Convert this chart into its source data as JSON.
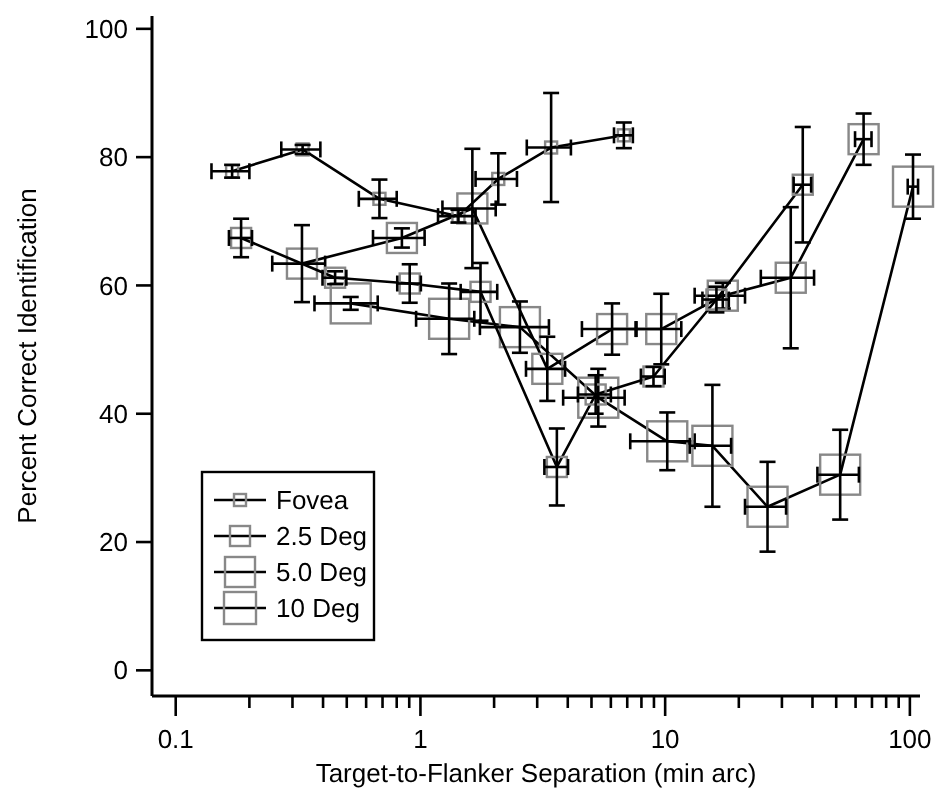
{
  "chart_data": {
    "type": "line",
    "xlabel": "Target-to-Flanker Separation (min arc)",
    "ylabel": "Percent Correct Identification",
    "log": "x",
    "xlim": [
      0.08,
      110
    ],
    "ylim": [
      -4,
      102
    ],
    "xticks": [
      0.1,
      {
        "value": 0.2,
        "label": null
      },
      {
        "value": 0.3,
        "label": null
      },
      {
        "value": 0.4,
        "label": null
      },
      {
        "value": 0.5,
        "label": null
      },
      {
        "value": 0.6,
        "label": null
      },
      {
        "value": 0.7,
        "label": null
      },
      {
        "value": 0.8,
        "label": null
      },
      {
        "value": 0.9,
        "label": null
      },
      1,
      {
        "value": 2,
        "label": null
      },
      {
        "value": 3,
        "label": null
      },
      {
        "value": 4,
        "label": null
      },
      {
        "value": 5,
        "label": null
      },
      {
        "value": 6,
        "label": null
      },
      {
        "value": 7,
        "label": null
      },
      {
        "value": 8,
        "label": null
      },
      {
        "value": 9,
        "label": null
      },
      10,
      {
        "value": 20,
        "label": null
      },
      {
        "value": 30,
        "label": null
      },
      {
        "value": 40,
        "label": null
      },
      {
        "value": 50,
        "label": null
      },
      {
        "value": 60,
        "label": null
      },
      {
        "value": 70,
        "label": null
      },
      {
        "value": 80,
        "label": null
      },
      {
        "value": 90,
        "label": null
      },
      100
    ],
    "yticks": [
      0,
      20,
      40,
      60,
      80,
      100
    ],
    "grid": false,
    "legend": "bottom left",
    "marker": "square",
    "line_style": "solid",
    "series": [
      {
        "name": "Fovea",
        "color": "#000000",
        "x": [
          0.17,
          0.33,
          0.68,
          1.43,
          2.08,
          3.42,
          6.78
        ],
        "values": [
          77.8,
          81.2,
          73.5,
          70.8,
          76.6,
          81.5,
          83.4
        ],
        "errors": [
          1,
          0.7,
          3,
          1,
          4,
          8.5,
          2
        ],
        "xerrors": [
          0.03,
          0.06,
          0.12,
          0.25,
          0.4,
          0.7,
          0.6
        ]
      },
      {
        "name": "2.5 Deg",
        "color": "#000000",
        "x": [
          0.185,
          0.448,
          0.904,
          1.76,
          3.61,
          5.2,
          8.96,
          16.2,
          36.5
        ],
        "values": [
          67.4,
          61.2,
          60.3,
          59,
          31.7,
          43,
          45.8,
          57.8,
          75.7
        ],
        "errors": [
          3,
          1,
          3,
          4.5,
          6,
          3,
          1.5,
          2,
          9
        ],
        "xerrors": [
          0.02,
          0.05,
          0.1,
          0.3,
          0.4,
          0.8,
          1,
          2,
          3
        ]
      },
      {
        "name": "5.0 Deg",
        "color": "#000000",
        "x": [
          0.328,
          0.84,
          1.63,
          3.3,
          6.07,
          9.64,
          17.2,
          32.6,
          64.7
        ],
        "values": [
          63.4,
          67.4,
          72,
          47,
          53.2,
          53.2,
          58.4,
          61.2,
          82.8
        ],
        "errors": [
          6,
          1.5,
          9.3,
          5,
          4,
          5.5,
          2,
          11,
          4
        ],
        "xerrors": [
          0.08,
          0.2,
          0.4,
          0.6,
          1.5,
          2,
          4,
          8,
          5
        ]
      },
      {
        "name": "10 Deg",
        "color": "#000000",
        "x": [
          0.519,
          1.31,
          2.55,
          5.33,
          10.2,
          15.6,
          26.2,
          51.9,
          103
        ],
        "values": [
          57.2,
          54.8,
          53.5,
          42.5,
          35.7,
          35,
          25.5,
          30.5,
          75.4
        ],
        "errors": [
          1,
          5.5,
          4,
          4.5,
          4.5,
          9.5,
          7,
          7,
          5
        ],
        "xerrors": [
          0.15,
          0.35,
          0.8,
          1.5,
          3,
          3,
          5,
          10,
          5
        ]
      }
    ]
  }
}
